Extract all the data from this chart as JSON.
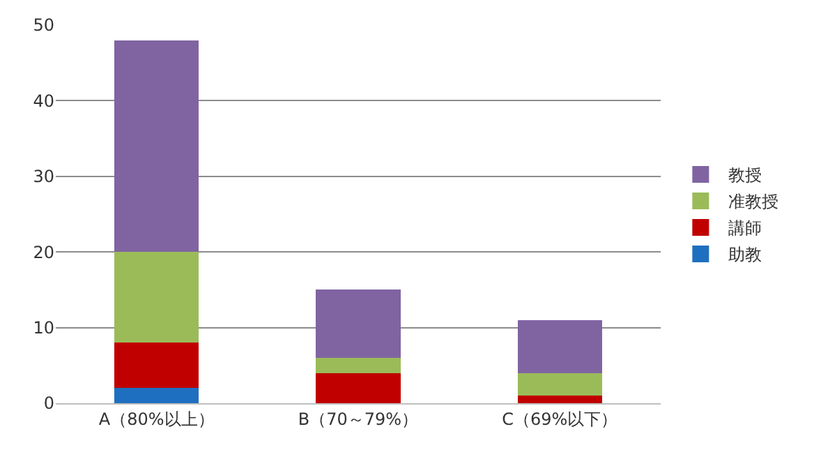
{
  "chart_data": {
    "type": "bar",
    "stacked": true,
    "categories": [
      "A（80%以上）",
      "B（70～79%）",
      "C（69%以下）"
    ],
    "series": [
      {
        "name": "助教",
        "color": "#1f6fc0",
        "values": [
          2,
          0,
          0
        ]
      },
      {
        "name": "講師",
        "color": "#c00000",
        "values": [
          6,
          4,
          1
        ]
      },
      {
        "name": "准教授",
        "color": "#9bbb59",
        "values": [
          12,
          2,
          3
        ]
      },
      {
        "name": "教授",
        "color": "#8064a2",
        "values": [
          28,
          9,
          7
        ]
      }
    ],
    "ylim": [
      0,
      50
    ],
    "yticks": [
      0,
      10,
      20,
      30,
      40,
      50
    ],
    "grid": "y",
    "legend": "right"
  }
}
